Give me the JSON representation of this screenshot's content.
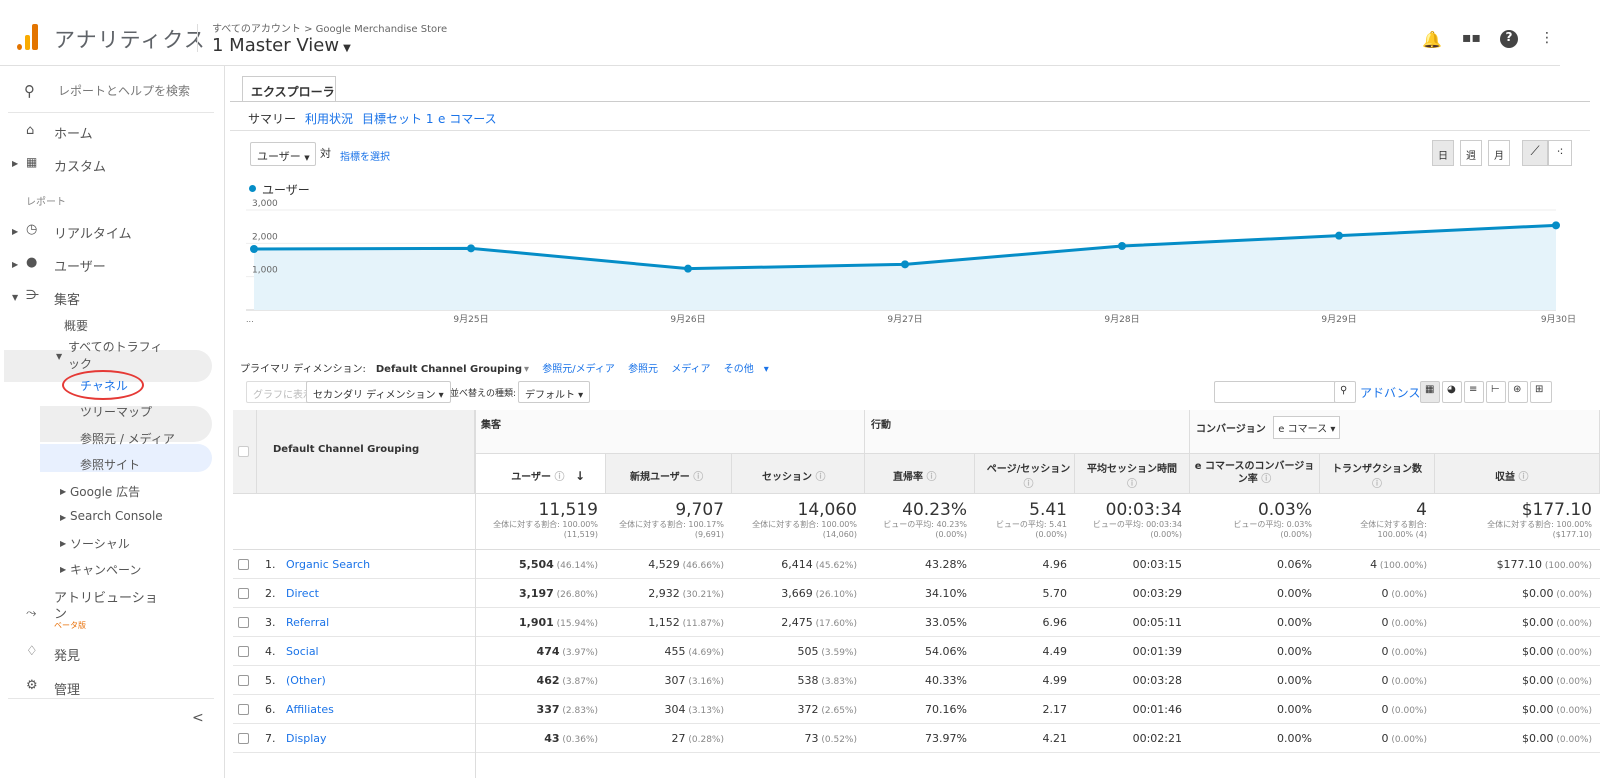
{
  "header": {
    "app_name": "アナリティクス",
    "breadcrumb": "すべてのアカウント > Google Merchandise Store",
    "view": "1 Master View"
  },
  "sidebar": {
    "search": "レポートとヘルプを検索",
    "home": "ホーム",
    "custom": "カスタム",
    "reports_heading": "レポート",
    "realtime": "リアルタイム",
    "users": "ユーザー",
    "acquisition": "集客",
    "overview": "概要",
    "all_traffic_1": "すべてのトラフィ",
    "all_traffic_2": "ック",
    "channels": "チャネル",
    "treemap": "ツリーマップ",
    "source_medium": "参照元 / メディア",
    "referrals": "参照サイト",
    "google_ads": "Google 広告",
    "search_console": "Search Console",
    "social": "ソーシャル",
    "campaigns": "キャンペーン",
    "attribution_1": "アトリビューショ",
    "attribution_2": "ン",
    "beta": "ベータ版",
    "discover": "発見",
    "admin": "管理",
    "collapse": "<"
  },
  "main": {
    "tab": "エクスプローラ",
    "subtabs": [
      "サマリー",
      "利用状況",
      "目標セット 1",
      "e コマース"
    ],
    "metric_select": "ユーザー",
    "vs": "対",
    "pick_metric": "指標を選択",
    "granularity": [
      "日",
      "週",
      "月"
    ],
    "legend": "ユーザー"
  },
  "chart_data": {
    "type": "line",
    "series": [
      {
        "name": "ユーザー",
        "values": [
          1830,
          1850,
          1240,
          1370,
          1920,
          2230,
          2540
        ]
      }
    ],
    "x": [
      "",
      "9月25日",
      "9月26日",
      "9月27日",
      "9月28日",
      "9月29日",
      "9月30日"
    ],
    "x_start_label": "...",
    "yticks": [
      "3,000",
      "2,000",
      "1,000"
    ],
    "ylim": [
      0,
      3000
    ],
    "color": "#058dc7"
  },
  "dims": {
    "label": "プライマリ ディメンション:",
    "current": "Default Channel Grouping",
    "others": [
      "参照元/メディア",
      "参照元",
      "メディア",
      "その他"
    ]
  },
  "controls": {
    "plot": "グラフに表示",
    "secondary": "セカンダリ ディメンション",
    "sort_label": "並べ替えの種類:",
    "sort": "デフォルト",
    "advanced": "アドバンス"
  },
  "table": {
    "dim_header": "Default Channel Grouping",
    "group_acq": "集客",
    "group_beh": "行動",
    "group_conv": "コンバージョン",
    "conv_select": "e コマース",
    "headers": [
      "ユーザー",
      "新規ユーザー",
      "セッション",
      "直帰率",
      "ページ/セッション",
      "平均セッション時間",
      "e コマースのコンバージョン率",
      "トランザクション数",
      "収益"
    ],
    "totals": [
      {
        "v": "11,519",
        "s1": "全体に対する割合: 100.00%",
        "s2": "(11,519)"
      },
      {
        "v": "9,707",
        "s1": "全体に対する割合: 100.17%",
        "s2": "(9,691)"
      },
      {
        "v": "14,060",
        "s1": "全体に対する割合: 100.00%",
        "s2": "(14,060)"
      },
      {
        "v": "40.23%",
        "s1": "ビューの平均: 40.23%",
        "s2": "(0.00%)"
      },
      {
        "v": "5.41",
        "s1": "ビューの平均: 5.41",
        "s2": "(0.00%)"
      },
      {
        "v": "00:03:34",
        "s1": "ビューの平均: 00:03:34",
        "s2": "(0.00%)"
      },
      {
        "v": "0.03%",
        "s1": "ビューの平均: 0.03%",
        "s2": "(0.00%)"
      },
      {
        "v": "4",
        "s1": "全体に対する割合:",
        "s2": "100.00% (4)"
      },
      {
        "v": "$177.10",
        "s1": "全体に対する割合: 100.00%",
        "s2": "($177.10)"
      }
    ],
    "rows": [
      {
        "n": "1.",
        "name": "Organic Search",
        "u": "5,504",
        "up": "(46.14%)",
        "nu": "4,529",
        "nup": "(46.66%)",
        "s": "6,414",
        "sp": "(45.62%)",
        "b": "43.28%",
        "p": "4.96",
        "d": "00:03:15",
        "c": "0.06%",
        "t": "4",
        "tp": "(100.00%)",
        "r": "$177.10",
        "rp": "(100.00%)"
      },
      {
        "n": "2.",
        "name": "Direct",
        "u": "3,197",
        "up": "(26.80%)",
        "nu": "2,932",
        "nup": "(30.21%)",
        "s": "3,669",
        "sp": "(26.10%)",
        "b": "34.10%",
        "p": "5.70",
        "d": "00:03:29",
        "c": "0.00%",
        "t": "0",
        "tp": "(0.00%)",
        "r": "$0.00",
        "rp": "(0.00%)"
      },
      {
        "n": "3.",
        "name": "Referral",
        "u": "1,901",
        "up": "(15.94%)",
        "nu": "1,152",
        "nup": "(11.87%)",
        "s": "2,475",
        "sp": "(17.60%)",
        "b": "33.05%",
        "p": "6.96",
        "d": "00:05:11",
        "c": "0.00%",
        "t": "0",
        "tp": "(0.00%)",
        "r": "$0.00",
        "rp": "(0.00%)"
      },
      {
        "n": "4.",
        "name": "Social",
        "u": "474",
        "up": "(3.97%)",
        "nu": "455",
        "nup": "(4.69%)",
        "s": "505",
        "sp": "(3.59%)",
        "b": "54.06%",
        "p": "4.49",
        "d": "00:01:39",
        "c": "0.00%",
        "t": "0",
        "tp": "(0.00%)",
        "r": "$0.00",
        "rp": "(0.00%)"
      },
      {
        "n": "5.",
        "name": "(Other)",
        "u": "462",
        "up": "(3.87%)",
        "nu": "307",
        "nup": "(3.16%)",
        "s": "538",
        "sp": "(3.83%)",
        "b": "40.33%",
        "p": "4.99",
        "d": "00:03:28",
        "c": "0.00%",
        "t": "0",
        "tp": "(0.00%)",
        "r": "$0.00",
        "rp": "(0.00%)"
      },
      {
        "n": "6.",
        "name": "Affiliates",
        "u": "337",
        "up": "(2.83%)",
        "nu": "304",
        "nup": "(3.13%)",
        "s": "372",
        "sp": "(2.65%)",
        "b": "70.16%",
        "p": "2.17",
        "d": "00:01:46",
        "c": "0.00%",
        "t": "0",
        "tp": "(0.00%)",
        "r": "$0.00",
        "rp": "(0.00%)"
      },
      {
        "n": "7.",
        "name": "Display",
        "u": "43",
        "up": "(0.36%)",
        "nu": "27",
        "nup": "(0.28%)",
        "s": "73",
        "sp": "(0.52%)",
        "b": "73.97%",
        "p": "4.21",
        "d": "00:02:21",
        "c": "0.00%",
        "t": "0",
        "tp": "(0.00%)",
        "r": "$0.00",
        "rp": "(0.00%)"
      }
    ]
  }
}
